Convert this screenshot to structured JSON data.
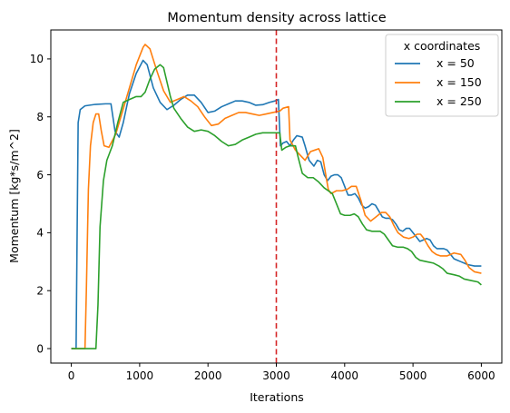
{
  "chart_data": {
    "type": "line",
    "title": "Momentum density across lattice",
    "xlabel": "Iterations",
    "ylabel": "Momentum [kg*s/m^2]",
    "xlim": [
      -300,
      6300
    ],
    "ylim": [
      -0.5,
      11.0
    ],
    "xticks": [
      0,
      1000,
      2000,
      3000,
      4000,
      5000,
      6000
    ],
    "yticks": [
      0,
      2,
      4,
      6,
      8,
      10
    ],
    "grid": false,
    "legend": {
      "title": "x coordinates",
      "placement": "top-right"
    },
    "vline": {
      "x": 3000,
      "color": "#d62728",
      "style": "dashed"
    },
    "series": [
      {
        "name": "x = 50",
        "color": "#1f77b4",
        "points": [
          [
            0,
            0
          ],
          [
            70,
            0
          ],
          [
            85,
            4
          ],
          [
            100,
            7.8
          ],
          [
            130,
            8.25
          ],
          [
            200,
            8.38
          ],
          [
            350,
            8.43
          ],
          [
            500,
            8.45
          ],
          [
            580,
            8.45
          ],
          [
            640,
            7.5
          ],
          [
            700,
            7.3
          ],
          [
            760,
            7.8
          ],
          [
            850,
            8.8
          ],
          [
            950,
            9.5
          ],
          [
            1050,
            9.95
          ],
          [
            1110,
            9.8
          ],
          [
            1200,
            9.0
          ],
          [
            1300,
            8.5
          ],
          [
            1400,
            8.25
          ],
          [
            1500,
            8.4
          ],
          [
            1600,
            8.6
          ],
          [
            1700,
            8.75
          ],
          [
            1800,
            8.75
          ],
          [
            1900,
            8.5
          ],
          [
            2000,
            8.15
          ],
          [
            2100,
            8.2
          ],
          [
            2200,
            8.35
          ],
          [
            2300,
            8.45
          ],
          [
            2400,
            8.55
          ],
          [
            2500,
            8.55
          ],
          [
            2600,
            8.5
          ],
          [
            2700,
            8.4
          ],
          [
            2800,
            8.42
          ],
          [
            2900,
            8.5
          ],
          [
            2980,
            8.55
          ],
          [
            3030,
            8.6
          ],
          [
            3060,
            7.0
          ],
          [
            3100,
            7.1
          ],
          [
            3150,
            7.15
          ],
          [
            3200,
            7.0
          ],
          [
            3250,
            7.2
          ],
          [
            3300,
            7.35
          ],
          [
            3380,
            7.3
          ],
          [
            3420,
            7.0
          ],
          [
            3480,
            6.5
          ],
          [
            3550,
            6.3
          ],
          [
            3600,
            6.5
          ],
          [
            3650,
            6.45
          ],
          [
            3700,
            6.0
          ],
          [
            3750,
            5.8
          ],
          [
            3800,
            5.95
          ],
          [
            3850,
            6.0
          ],
          [
            3900,
            6.0
          ],
          [
            3950,
            5.9
          ],
          [
            4000,
            5.6
          ],
          [
            4050,
            5.3
          ],
          [
            4100,
            5.3
          ],
          [
            4150,
            5.35
          ],
          [
            4200,
            5.2
          ],
          [
            4250,
            4.95
          ],
          [
            4300,
            4.85
          ],
          [
            4350,
            4.9
          ],
          [
            4400,
            5.0
          ],
          [
            4450,
            4.95
          ],
          [
            4500,
            4.75
          ],
          [
            4550,
            4.55
          ],
          [
            4600,
            4.5
          ],
          [
            4650,
            4.5
          ],
          [
            4700,
            4.45
          ],
          [
            4750,
            4.3
          ],
          [
            4800,
            4.1
          ],
          [
            4850,
            4.05
          ],
          [
            4900,
            4.15
          ],
          [
            4950,
            4.15
          ],
          [
            5000,
            4.0
          ],
          [
            5050,
            3.85
          ],
          [
            5100,
            3.7
          ],
          [
            5150,
            3.75
          ],
          [
            5200,
            3.8
          ],
          [
            5250,
            3.75
          ],
          [
            5300,
            3.55
          ],
          [
            5350,
            3.45
          ],
          [
            5400,
            3.45
          ],
          [
            5450,
            3.45
          ],
          [
            5500,
            3.4
          ],
          [
            5550,
            3.25
          ],
          [
            5600,
            3.1
          ],
          [
            5650,
            3.05
          ],
          [
            5700,
            3.0
          ],
          [
            5750,
            2.95
          ],
          [
            5800,
            2.9
          ],
          [
            5900,
            2.85
          ],
          [
            6000,
            2.85
          ]
        ]
      },
      {
        "name": "x = 150",
        "color": "#ff7f0e",
        "points": [
          [
            0,
            0
          ],
          [
            200,
            0
          ],
          [
            220,
            2
          ],
          [
            250,
            5.5
          ],
          [
            280,
            7.0
          ],
          [
            320,
            7.8
          ],
          [
            360,
            8.1
          ],
          [
            400,
            8.1
          ],
          [
            440,
            7.5
          ],
          [
            480,
            7.0
          ],
          [
            550,
            6.95
          ],
          [
            650,
            7.4
          ],
          [
            750,
            8.2
          ],
          [
            850,
            9.0
          ],
          [
            950,
            9.8
          ],
          [
            1050,
            10.4
          ],
          [
            1080,
            10.5
          ],
          [
            1150,
            10.35
          ],
          [
            1250,
            9.6
          ],
          [
            1350,
            8.9
          ],
          [
            1450,
            8.5
          ],
          [
            1550,
            8.6
          ],
          [
            1650,
            8.7
          ],
          [
            1750,
            8.55
          ],
          [
            1850,
            8.35
          ],
          [
            1950,
            8.0
          ],
          [
            2050,
            7.7
          ],
          [
            2150,
            7.75
          ],
          [
            2250,
            7.95
          ],
          [
            2350,
            8.05
          ],
          [
            2450,
            8.15
          ],
          [
            2550,
            8.15
          ],
          [
            2650,
            8.1
          ],
          [
            2750,
            8.05
          ],
          [
            2850,
            8.1
          ],
          [
            2950,
            8.15
          ],
          [
            3050,
            8.2
          ],
          [
            3100,
            8.3
          ],
          [
            3180,
            8.35
          ],
          [
            3200,
            7.2
          ],
          [
            3280,
            6.85
          ],
          [
            3360,
            6.65
          ],
          [
            3420,
            6.5
          ],
          [
            3460,
            6.65
          ],
          [
            3500,
            6.8
          ],
          [
            3560,
            6.85
          ],
          [
            3620,
            6.9
          ],
          [
            3680,
            6.6
          ],
          [
            3720,
            6.05
          ],
          [
            3760,
            5.5
          ],
          [
            3800,
            5.35
          ],
          [
            3880,
            5.45
          ],
          [
            3960,
            5.45
          ],
          [
            4040,
            5.5
          ],
          [
            4100,
            5.6
          ],
          [
            4170,
            5.6
          ],
          [
            4240,
            5.1
          ],
          [
            4300,
            4.6
          ],
          [
            4380,
            4.4
          ],
          [
            4460,
            4.55
          ],
          [
            4540,
            4.7
          ],
          [
            4600,
            4.7
          ],
          [
            4660,
            4.55
          ],
          [
            4720,
            4.25
          ],
          [
            4780,
            4.0
          ],
          [
            4860,
            3.85
          ],
          [
            4940,
            3.8
          ],
          [
            5000,
            3.85
          ],
          [
            5060,
            3.95
          ],
          [
            5110,
            3.95
          ],
          [
            5160,
            3.8
          ],
          [
            5220,
            3.55
          ],
          [
            5280,
            3.35
          ],
          [
            5340,
            3.25
          ],
          [
            5400,
            3.2
          ],
          [
            5500,
            3.2
          ],
          [
            5600,
            3.3
          ],
          [
            5700,
            3.25
          ],
          [
            5760,
            3.05
          ],
          [
            5820,
            2.8
          ],
          [
            5900,
            2.65
          ],
          [
            6000,
            2.6
          ]
        ]
      },
      {
        "name": "x = 250",
        "color": "#2ca02c",
        "points": [
          [
            0,
            0
          ],
          [
            360,
            0
          ],
          [
            390,
            1.5
          ],
          [
            420,
            4.2
          ],
          [
            470,
            5.8
          ],
          [
            520,
            6.5
          ],
          [
            600,
            7.0
          ],
          [
            680,
            7.8
          ],
          [
            760,
            8.5
          ],
          [
            850,
            8.6
          ],
          [
            950,
            8.7
          ],
          [
            1020,
            8.7
          ],
          [
            1080,
            8.85
          ],
          [
            1150,
            9.3
          ],
          [
            1220,
            9.65
          ],
          [
            1300,
            9.8
          ],
          [
            1350,
            9.7
          ],
          [
            1400,
            9.2
          ],
          [
            1450,
            8.7
          ],
          [
            1500,
            8.3
          ],
          [
            1600,
            7.95
          ],
          [
            1700,
            7.65
          ],
          [
            1800,
            7.5
          ],
          [
            1900,
            7.55
          ],
          [
            2000,
            7.5
          ],
          [
            2100,
            7.35
          ],
          [
            2200,
            7.15
          ],
          [
            2300,
            7.0
          ],
          [
            2400,
            7.05
          ],
          [
            2500,
            7.2
          ],
          [
            2600,
            7.3
          ],
          [
            2700,
            7.4
          ],
          [
            2800,
            7.45
          ],
          [
            2900,
            7.45
          ],
          [
            3000,
            7.45
          ],
          [
            3050,
            7.45
          ],
          [
            3080,
            6.85
          ],
          [
            3140,
            6.95
          ],
          [
            3200,
            7.0
          ],
          [
            3280,
            7.0
          ],
          [
            3320,
            6.6
          ],
          [
            3380,
            6.05
          ],
          [
            3460,
            5.9
          ],
          [
            3540,
            5.9
          ],
          [
            3620,
            5.75
          ],
          [
            3700,
            5.55
          ],
          [
            3760,
            5.45
          ],
          [
            3820,
            5.35
          ],
          [
            3880,
            5.0
          ],
          [
            3940,
            4.65
          ],
          [
            4000,
            4.6
          ],
          [
            4080,
            4.6
          ],
          [
            4140,
            4.65
          ],
          [
            4200,
            4.55
          ],
          [
            4260,
            4.3
          ],
          [
            4320,
            4.1
          ],
          [
            4400,
            4.05
          ],
          [
            4460,
            4.05
          ],
          [
            4520,
            4.05
          ],
          [
            4580,
            3.95
          ],
          [
            4640,
            3.75
          ],
          [
            4700,
            3.55
          ],
          [
            4780,
            3.5
          ],
          [
            4860,
            3.5
          ],
          [
            4920,
            3.45
          ],
          [
            4980,
            3.35
          ],
          [
            5040,
            3.15
          ],
          [
            5100,
            3.05
          ],
          [
            5200,
            3.0
          ],
          [
            5300,
            2.95
          ],
          [
            5380,
            2.85
          ],
          [
            5440,
            2.75
          ],
          [
            5500,
            2.6
          ],
          [
            5600,
            2.55
          ],
          [
            5680,
            2.5
          ],
          [
            5750,
            2.4
          ],
          [
            5850,
            2.35
          ],
          [
            5950,
            2.3
          ],
          [
            6000,
            2.2
          ]
        ]
      }
    ]
  }
}
